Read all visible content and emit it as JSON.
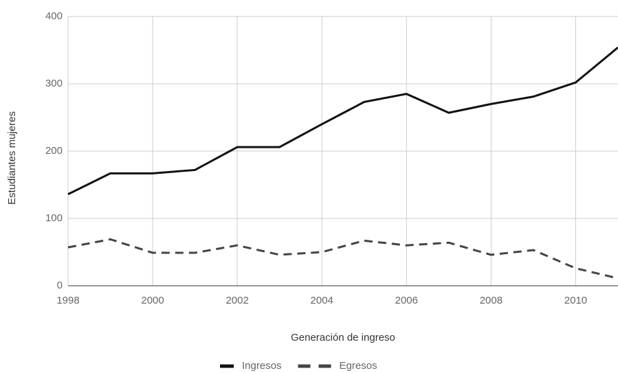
{
  "chart_data": {
    "type": "line",
    "x_label": "Generación de ingreso",
    "y_label": "Estudiantes mujeres",
    "x": [
      1998,
      1999,
      2000,
      2001,
      2002,
      2003,
      2004,
      2005,
      2006,
      2007,
      2008,
      2009,
      2010,
      2011
    ],
    "series": [
      {
        "name": "Ingresos",
        "color": "#111111",
        "dashed": false,
        "values": [
          136,
          167,
          167,
          172,
          206,
          206,
          240,
          273,
          285,
          257,
          270,
          281,
          302,
          354
        ]
      },
      {
        "name": "Egresos",
        "color": "#444444",
        "dashed": true,
        "values": [
          57,
          69,
          49,
          49,
          60,
          46,
          50,
          67,
          60,
          64,
          46,
          53,
          26,
          11
        ]
      }
    ],
    "xlim": [
      1998,
      2011
    ],
    "xticks": [
      1998,
      2000,
      2002,
      2004,
      2006,
      2008,
      2010
    ],
    "ylim": [
      0,
      400
    ],
    "yticks": [
      0,
      100,
      200,
      300,
      400
    ],
    "grid": true,
    "legend": "bottom"
  }
}
